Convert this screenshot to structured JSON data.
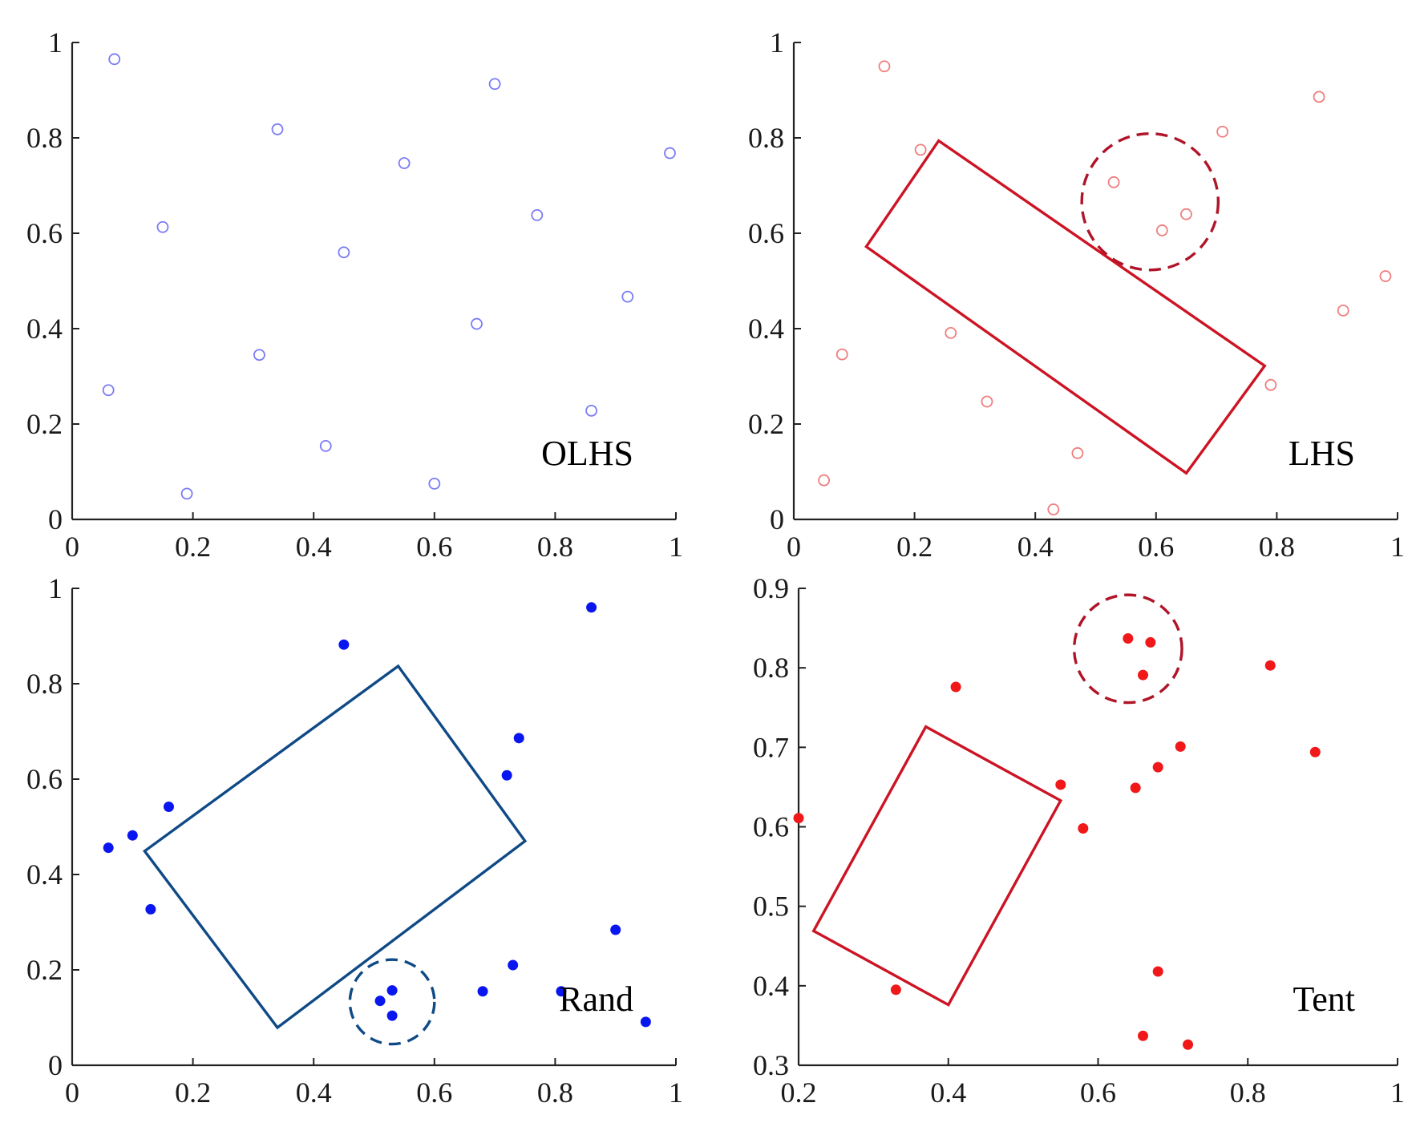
{
  "chart_data": [
    {
      "type": "scatter",
      "panel_label": "OLHS",
      "xlim": [
        0,
        1
      ],
      "ylim": [
        0,
        1
      ],
      "xticks": [
        0,
        0.2,
        0.4,
        0.6,
        0.8,
        1
      ],
      "yticks": [
        0,
        0.2,
        0.4,
        0.6,
        0.8,
        1
      ],
      "tick_labels_x": [
        "0",
        "0.2",
        "0.4",
        "0.6",
        "0.8",
        "1"
      ],
      "tick_labels_y": [
        "0",
        "0.2",
        "0.4",
        "0.6",
        "0.8",
        "1"
      ],
      "marker": "open-circle",
      "color": "#7b7bf5",
      "points": [
        [
          0.07,
          0.965
        ],
        [
          0.7,
          0.913
        ],
        [
          0.34,
          0.818
        ],
        [
          0.55,
          0.747
        ],
        [
          0.99,
          0.768
        ],
        [
          0.15,
          0.613
        ],
        [
          0.77,
          0.638
        ],
        [
          0.45,
          0.56
        ],
        [
          0.92,
          0.467
        ],
        [
          0.67,
          0.41
        ],
        [
          0.31,
          0.345
        ],
        [
          0.06,
          0.271
        ],
        [
          0.86,
          0.228
        ],
        [
          0.42,
          0.154
        ],
        [
          0.19,
          0.054
        ],
        [
          0.6,
          0.075
        ]
      ],
      "shapes": []
    },
    {
      "type": "scatter",
      "panel_label": "LHS",
      "xlim": [
        0,
        1
      ],
      "ylim": [
        0,
        1
      ],
      "xticks": [
        0,
        0.2,
        0.4,
        0.6,
        0.8,
        1
      ],
      "yticks": [
        0,
        0.2,
        0.4,
        0.6,
        0.8,
        1
      ],
      "tick_labels_x": [
        "0",
        "0.2",
        "0.4",
        "0.6",
        "0.8",
        "1"
      ],
      "tick_labels_y": [
        "0",
        "0.2",
        "0.4",
        "0.6",
        "0.8",
        "1"
      ],
      "marker": "open-circle",
      "color": "#f07e7e",
      "points": [
        [
          0.15,
          0.95
        ],
        [
          0.87,
          0.886
        ],
        [
          0.21,
          0.775
        ],
        [
          0.71,
          0.813
        ],
        [
          0.53,
          0.707
        ],
        [
          0.65,
          0.64
        ],
        [
          0.61,
          0.606
        ],
        [
          0.98,
          0.51
        ],
        [
          0.91,
          0.438
        ],
        [
          0.08,
          0.346
        ],
        [
          0.26,
          0.391
        ],
        [
          0.79,
          0.282
        ],
        [
          0.32,
          0.247
        ],
        [
          0.47,
          0.139
        ],
        [
          0.05,
          0.082
        ],
        [
          0.43,
          0.021
        ]
      ],
      "shapes": [
        {
          "kind": "polygon",
          "style": "solid",
          "color": "#cc1424",
          "points": [
            [
              0.24,
              0.794
            ],
            [
              0.78,
              0.322
            ],
            [
              0.65,
              0.097
            ],
            [
              0.12,
              0.572
            ]
          ]
        },
        {
          "kind": "circle",
          "style": "dashed",
          "color": "#b01428",
          "center": [
            0.59,
            0.666
          ],
          "radius": 0.113
        }
      ]
    },
    {
      "type": "scatter",
      "panel_label": "Rand",
      "xlim": [
        0,
        1
      ],
      "ylim": [
        0,
        1
      ],
      "xticks": [
        0,
        0.2,
        0.4,
        0.6,
        0.8,
        1
      ],
      "yticks": [
        0,
        0.2,
        0.4,
        0.6,
        0.8,
        1
      ],
      "tick_labels_x": [
        "0",
        "0.2",
        "0.4",
        "0.6",
        "0.8",
        "1"
      ],
      "tick_labels_y": [
        "0",
        "0.2",
        "0.4",
        "0.6",
        "0.8",
        "1"
      ],
      "marker": "filled-circle",
      "color": "#0a16f0",
      "points": [
        [
          0.86,
          0.96
        ],
        [
          0.45,
          0.882
        ],
        [
          0.74,
          0.686
        ],
        [
          0.72,
          0.608
        ],
        [
          0.16,
          0.542
        ],
        [
          0.1,
          0.482
        ],
        [
          0.06,
          0.456
        ],
        [
          0.13,
          0.327
        ],
        [
          0.9,
          0.284
        ],
        [
          0.73,
          0.21
        ],
        [
          0.68,
          0.155
        ],
        [
          0.81,
          0.155
        ],
        [
          0.53,
          0.157
        ],
        [
          0.51,
          0.135
        ],
        [
          0.53,
          0.104
        ],
        [
          0.95,
          0.091
        ]
      ],
      "shapes": [
        {
          "kind": "polygon",
          "style": "solid",
          "color": "#0f4a86",
          "points": [
            [
              0.54,
              0.837
            ],
            [
              0.75,
              0.47
            ],
            [
              0.34,
              0.079
            ],
            [
              0.12,
              0.449
            ]
          ]
        },
        {
          "kind": "circle",
          "style": "dashed",
          "color": "#0f4a86",
          "center": [
            0.53,
            0.133
          ],
          "radius": 0.07
        }
      ]
    },
    {
      "type": "scatter",
      "panel_label": "Tent",
      "xlim": [
        0.2,
        1
      ],
      "ylim": [
        0.3,
        0.9
      ],
      "xticks": [
        0.2,
        0.4,
        0.6,
        0.8,
        1
      ],
      "yticks": [
        0.3,
        0.4,
        0.5,
        0.6,
        0.7,
        0.8,
        0.9
      ],
      "tick_labels_x": [
        "0.2",
        "0.4",
        "0.6",
        "0.8",
        "1"
      ],
      "tick_labels_y": [
        "0.3",
        "0.4",
        "0.5",
        "0.6",
        "0.7",
        "0.8",
        "0.9"
      ],
      "marker": "filled-circle",
      "color": "#f01818",
      "points": [
        [
          0.64,
          0.837
        ],
        [
          0.67,
          0.832
        ],
        [
          0.66,
          0.791
        ],
        [
          0.41,
          0.776
        ],
        [
          0.83,
          0.803
        ],
        [
          0.71,
          0.701
        ],
        [
          0.68,
          0.675
        ],
        [
          0.89,
          0.694
        ],
        [
          0.55,
          0.653
        ],
        [
          0.65,
          0.649
        ],
        [
          0.58,
          0.598
        ],
        [
          0.2,
          0.611
        ],
        [
          0.68,
          0.418
        ],
        [
          0.33,
          0.395
        ],
        [
          0.66,
          0.337
        ],
        [
          0.72,
          0.326
        ]
      ],
      "shapes": [
        {
          "kind": "polygon",
          "style": "solid",
          "color": "#cc1424",
          "points": [
            [
              0.37,
              0.726
            ],
            [
              0.55,
              0.633
            ],
            [
              0.4,
              0.376
            ],
            [
              0.22,
              0.469
            ]
          ]
        },
        {
          "kind": "circle",
          "style": "dashed",
          "color": "#b01428",
          "center": [
            0.64,
            0.824
          ],
          "radius": 0.072
        }
      ]
    }
  ]
}
